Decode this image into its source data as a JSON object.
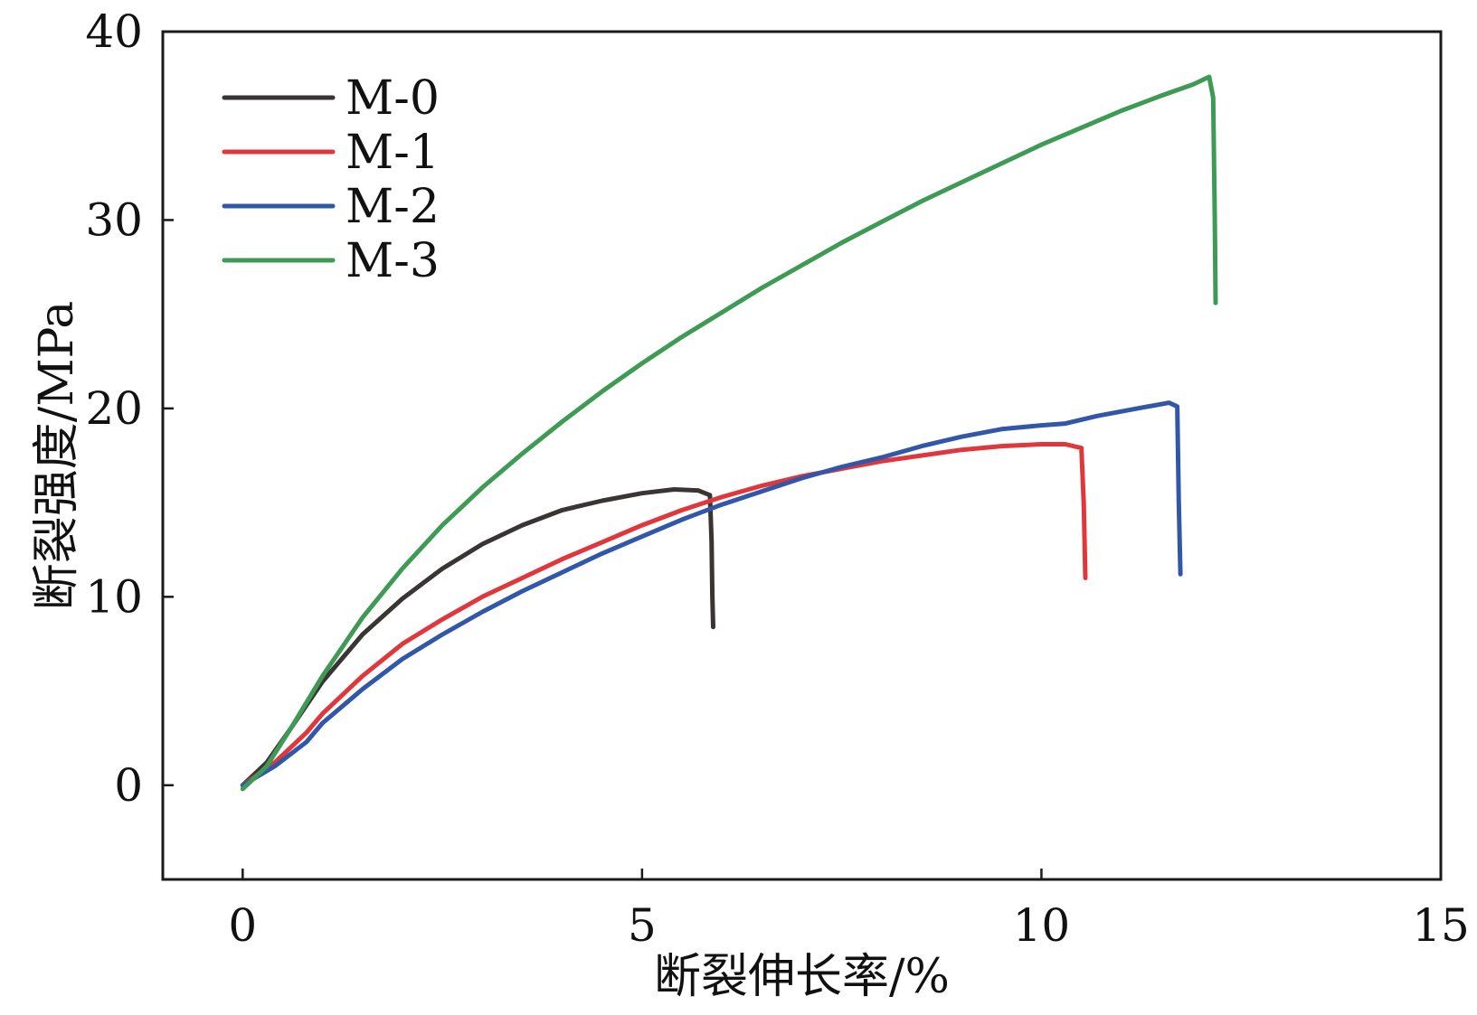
{
  "chart_data": {
    "type": "line",
    "title": "",
    "xlabel": "断裂伸长率/%",
    "ylabel": "断裂强度/MPa",
    "xlim": [
      -1,
      15
    ],
    "ylim": [
      -5,
      40
    ],
    "xticks": [
      0,
      5,
      10,
      15
    ],
    "yticks": [
      0,
      10,
      20,
      30,
      40
    ],
    "xtick_labels": [
      "0",
      "5",
      "10",
      "15"
    ],
    "ytick_labels": [
      "0",
      "10",
      "20",
      "30",
      "40"
    ],
    "grid": false,
    "legend_position": "top-left",
    "series": [
      {
        "name": "M-0",
        "color": "#3a3535",
        "points": [
          [
            0,
            0
          ],
          [
            0.3,
            1.2
          ],
          [
            0.6,
            3.0
          ],
          [
            1.0,
            5.5
          ],
          [
            1.5,
            8.0
          ],
          [
            2.0,
            9.9
          ],
          [
            2.5,
            11.5
          ],
          [
            3.0,
            12.8
          ],
          [
            3.5,
            13.8
          ],
          [
            4.0,
            14.6
          ],
          [
            4.5,
            15.1
          ],
          [
            5.0,
            15.5
          ],
          [
            5.4,
            15.7
          ],
          [
            5.7,
            15.65
          ],
          [
            5.85,
            15.4
          ],
          [
            5.87,
            13.0
          ],
          [
            5.88,
            10.0
          ],
          [
            5.89,
            8.4
          ]
        ]
      },
      {
        "name": "M-1",
        "color": "#e0373c",
        "points": [
          [
            0,
            0
          ],
          [
            0.4,
            1.2
          ],
          [
            0.8,
            2.8
          ],
          [
            1.0,
            3.8
          ],
          [
            1.5,
            5.8
          ],
          [
            2.0,
            7.5
          ],
          [
            2.5,
            8.8
          ],
          [
            3.0,
            10.0
          ],
          [
            3.5,
            11.0
          ],
          [
            4.0,
            12.0
          ],
          [
            4.5,
            12.9
          ],
          [
            5.0,
            13.8
          ],
          [
            5.5,
            14.6
          ],
          [
            6.0,
            15.3
          ],
          [
            6.5,
            15.9
          ],
          [
            7.0,
            16.4
          ],
          [
            7.5,
            16.8
          ],
          [
            8.0,
            17.2
          ],
          [
            8.5,
            17.5
          ],
          [
            9.0,
            17.8
          ],
          [
            9.5,
            18.0
          ],
          [
            10.0,
            18.1
          ],
          [
            10.3,
            18.1
          ],
          [
            10.5,
            17.9
          ],
          [
            10.53,
            15.0
          ],
          [
            10.55,
            11.0
          ]
        ]
      },
      {
        "name": "M-2",
        "color": "#3257a8",
        "points": [
          [
            0,
            0
          ],
          [
            0.4,
            1.0
          ],
          [
            0.8,
            2.3
          ],
          [
            1.0,
            3.3
          ],
          [
            1.5,
            5.1
          ],
          [
            2.0,
            6.7
          ],
          [
            2.5,
            8.0
          ],
          [
            3.0,
            9.2
          ],
          [
            3.5,
            10.3
          ],
          [
            4.0,
            11.3
          ],
          [
            4.5,
            12.3
          ],
          [
            5.0,
            13.2
          ],
          [
            5.5,
            14.1
          ],
          [
            6.0,
            14.9
          ],
          [
            6.5,
            15.6
          ],
          [
            7.0,
            16.3
          ],
          [
            7.5,
            16.9
          ],
          [
            8.0,
            17.4
          ],
          [
            8.5,
            18.0
          ],
          [
            9.0,
            18.5
          ],
          [
            9.5,
            18.9
          ],
          [
            10.0,
            19.1
          ],
          [
            10.3,
            19.2
          ],
          [
            10.7,
            19.6
          ],
          [
            11.2,
            20.0
          ],
          [
            11.6,
            20.3
          ],
          [
            11.7,
            20.1
          ],
          [
            11.72,
            15.0
          ],
          [
            11.74,
            11.2
          ]
        ]
      },
      {
        "name": "M-3",
        "color": "#3f9a55",
        "points": [
          [
            0,
            -0.2
          ],
          [
            0.3,
            1.0
          ],
          [
            0.6,
            3.0
          ],
          [
            1.0,
            5.8
          ],
          [
            1.5,
            8.9
          ],
          [
            2.0,
            11.5
          ],
          [
            2.5,
            13.8
          ],
          [
            3.0,
            15.8
          ],
          [
            3.5,
            17.6
          ],
          [
            4.0,
            19.3
          ],
          [
            4.5,
            20.9
          ],
          [
            5.0,
            22.4
          ],
          [
            5.5,
            23.8
          ],
          [
            6.0,
            25.1
          ],
          [
            6.5,
            26.4
          ],
          [
            7.0,
            27.6
          ],
          [
            7.5,
            28.8
          ],
          [
            8.0,
            29.9
          ],
          [
            8.5,
            31.0
          ],
          [
            9.0,
            32.0
          ],
          [
            9.5,
            33.0
          ],
          [
            10.0,
            34.0
          ],
          [
            10.5,
            34.9
          ],
          [
            11.0,
            35.8
          ],
          [
            11.5,
            36.6
          ],
          [
            11.9,
            37.2
          ],
          [
            12.1,
            37.6
          ],
          [
            12.15,
            36.5
          ],
          [
            12.17,
            30.0
          ],
          [
            12.18,
            25.6
          ]
        ]
      }
    ]
  }
}
